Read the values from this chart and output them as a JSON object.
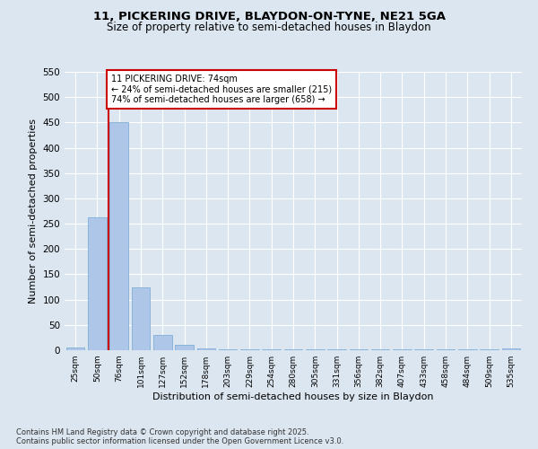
{
  "title_line1": "11, PICKERING DRIVE, BLAYDON-ON-TYNE, NE21 5GA",
  "title_line2": "Size of property relative to semi-detached houses in Blaydon",
  "xlabel": "Distribution of semi-detached houses by size in Blaydon",
  "ylabel": "Number of semi-detached properties",
  "categories": [
    "25sqm",
    "50sqm",
    "76sqm",
    "101sqm",
    "127sqm",
    "152sqm",
    "178sqm",
    "203sqm",
    "229sqm",
    "254sqm",
    "280sqm",
    "305sqm",
    "331sqm",
    "356sqm",
    "382sqm",
    "407sqm",
    "433sqm",
    "458sqm",
    "484sqm",
    "509sqm",
    "535sqm"
  ],
  "values": [
    5,
    262,
    450,
    125,
    30,
    10,
    3,
    2,
    2,
    2,
    1,
    1,
    1,
    1,
    1,
    1,
    1,
    1,
    1,
    1,
    3
  ],
  "bar_color": "#aec6e8",
  "bar_edgecolor": "#8ab4d8",
  "vline_x": 1.5,
  "annotation_text": "11 PICKERING DRIVE: 74sqm\n← 24% of semi-detached houses are smaller (215)\n74% of semi-detached houses are larger (658) →",
  "vline_color": "#cc0000",
  "box_edgecolor": "#cc0000",
  "ylim": [
    0,
    550
  ],
  "yticks": [
    0,
    50,
    100,
    150,
    200,
    250,
    300,
    350,
    400,
    450,
    500,
    550
  ],
  "footer_line1": "Contains HM Land Registry data © Crown copyright and database right 2025.",
  "footer_line2": "Contains public sector information licensed under the Open Government Licence v3.0.",
  "background_color": "#dce6f0",
  "plot_background_color": "#dce6f0",
  "grid_color": "#ffffff"
}
